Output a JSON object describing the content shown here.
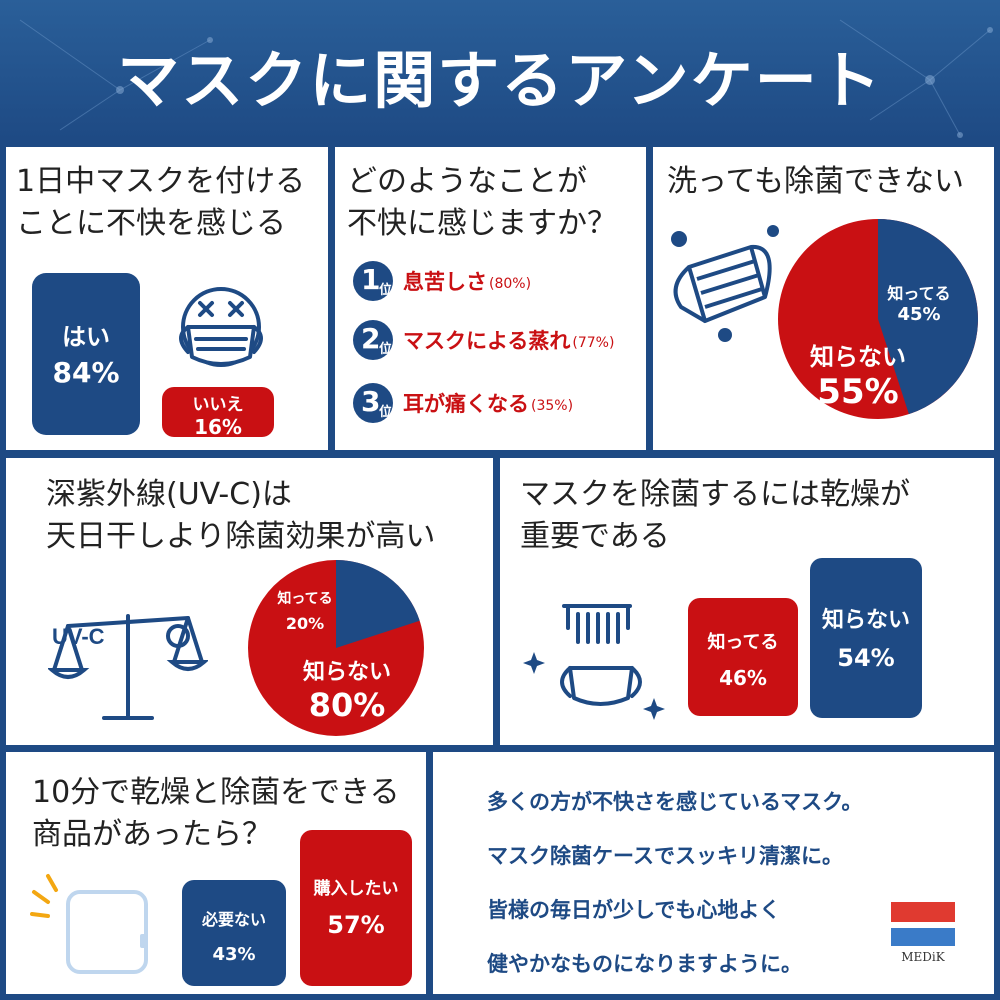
{
  "header": {
    "title": "マスクに関するアンケート"
  },
  "panel1": {
    "title": "1日中マスクを付ける\nことに不快を感じる",
    "yes_label": "はい",
    "yes_value": "84%",
    "no_label": "いいえ",
    "no_value": "16%",
    "icon": "dizzy-face-mask-icon"
  },
  "panel2": {
    "title": "どのようなことが\n不快に感じますか？",
    "unit": "位",
    "ranks": [
      {
        "num": "1",
        "label": "息苦しさ",
        "pct": "(80%)"
      },
      {
        "num": "2",
        "label": "マスクによる蒸れ",
        "pct": "(77%)"
      },
      {
        "num": "3",
        "label": "耳が痛くなる",
        "pct": "(35%)"
      }
    ]
  },
  "panel3": {
    "title": "洗っても除菌できない",
    "know_label": "知ってる",
    "know_value": "45%",
    "dont_label": "知らない",
    "dont_value": "55%",
    "icon": "mask-with-germs-icon"
  },
  "panel4": {
    "title": "深紫外線(UV-C)は\n天日干しより除菌効果が高い",
    "icon_text": "UV-C",
    "know_label": "知ってる",
    "know_value": "20%",
    "dont_label": "知らない",
    "dont_value": "80%",
    "icon": "scale-sun-icon"
  },
  "panel5": {
    "title": "マスクを除菌するには乾燥が\n重要である",
    "know_label": "知ってる",
    "know_value": "46%",
    "dont_label": "知らない",
    "dont_value": "54%",
    "icon": "drying-mask-icon"
  },
  "panel6": {
    "title": "10分で乾燥と除菌をできる\n商品があったら？",
    "no_label": "必要ない",
    "no_value": "43%",
    "yes_label": "購入したい",
    "yes_value": "57%",
    "icon": "sterilizer-case-icon"
  },
  "closing": {
    "lines": [
      "多くの方が不快さを感じているマスク。",
      "マスク除菌ケースでスッキリ清潔に。",
      "皆様の毎日が少しでも心地よく",
      "健やかなものになりますように。"
    ],
    "logo_text": "MEDiK"
  },
  "chart_data": [
    {
      "type": "bar",
      "categories": [
        "はい",
        "いいえ"
      ],
      "values": [
        84,
        16
      ]
    },
    {
      "type": "bar",
      "categories": [
        "息苦しさ",
        "マスクによる蒸れ",
        "耳が痛くなる"
      ],
      "values": [
        80,
        77,
        35
      ]
    },
    {
      "type": "pie",
      "categories": [
        "知ってる",
        "知らない"
      ],
      "values": [
        45,
        55
      ]
    },
    {
      "type": "pie",
      "categories": [
        "知ってる",
        "知らない"
      ],
      "values": [
        20,
        80
      ]
    },
    {
      "type": "bar",
      "categories": [
        "知ってる",
        "知らない"
      ],
      "values": [
        46,
        54
      ]
    },
    {
      "type": "bar",
      "categories": [
        "必要ない",
        "購入したい"
      ],
      "values": [
        43,
        57
      ]
    }
  ],
  "colors": {
    "navy": "#1e4a84",
    "red": "#c91013",
    "header": "#2a5f99"
  }
}
